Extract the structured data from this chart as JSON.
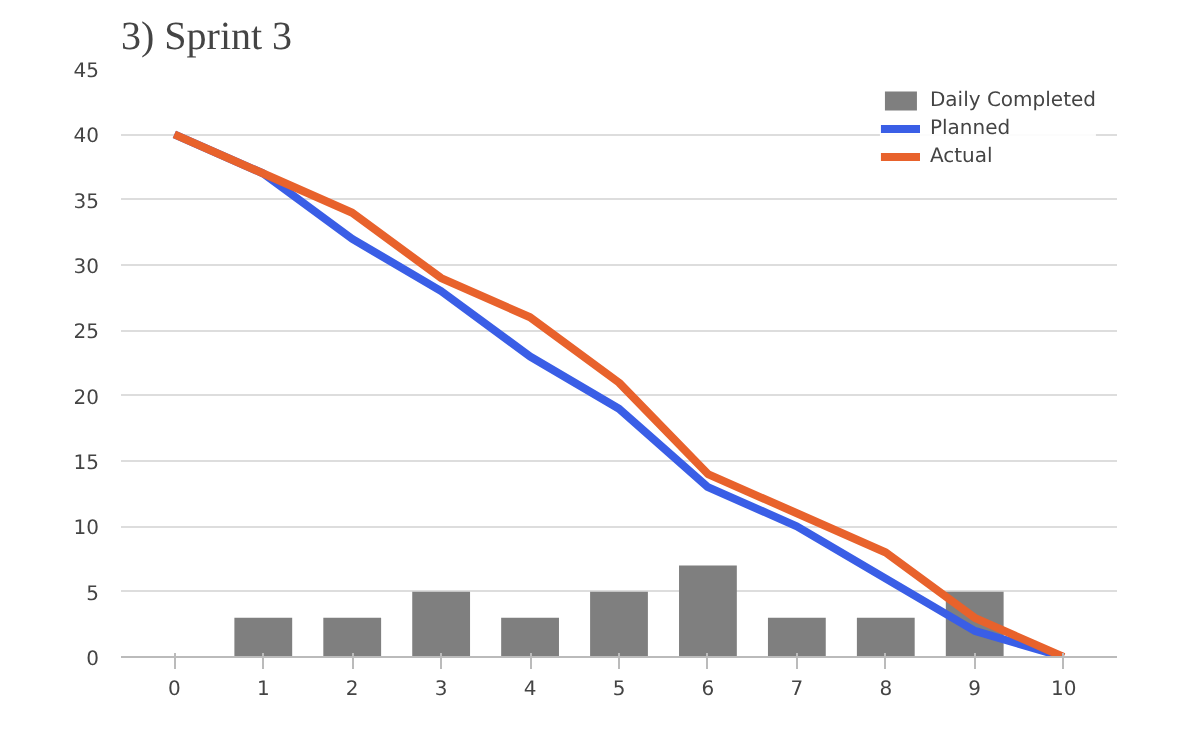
{
  "chart_data": {
    "type": "bar",
    "title": "3)    Sprint 3",
    "categories": [
      "0",
      "1",
      "2",
      "3",
      "4",
      "5",
      "6",
      "7",
      "8",
      "9",
      "10"
    ],
    "series": [
      {
        "name": "Daily Completed",
        "color": "#7f7f7f",
        "values": [
          null,
          3,
          3,
          5,
          3,
          5,
          7,
          3,
          3,
          5,
          null
        ]
      },
      {
        "name": "Planned",
        "type": "line",
        "color": "#3a5ee6",
        "values": [
          40,
          37,
          32,
          28,
          23,
          19,
          13,
          10,
          6,
          2,
          0
        ]
      },
      {
        "name": "Actual",
        "type": "line",
        "color": "#e8622c",
        "values": [
          40,
          37,
          34,
          29,
          26,
          21,
          14,
          11,
          8,
          3,
          0
        ]
      }
    ],
    "ylim": [
      0,
      45
    ],
    "yticks": [
      0,
      5,
      10,
      15,
      20,
      25,
      30,
      35,
      40,
      45
    ],
    "grid": "y",
    "legend": "top right"
  }
}
